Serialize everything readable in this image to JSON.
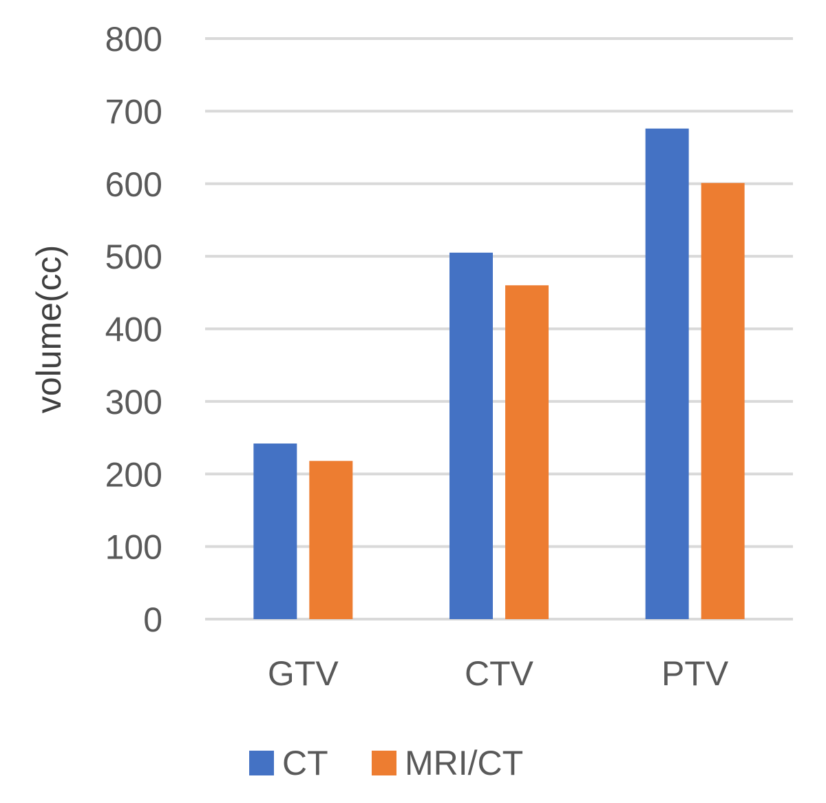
{
  "chart_data": {
    "type": "bar",
    "categories": [
      "GTV",
      "CTV",
      "PTV"
    ],
    "series": [
      {
        "name": "CT",
        "values": [
          242,
          505,
          676
        ],
        "color": "#4472C4"
      },
      {
        "name": "MRI/CT",
        "values": [
          218,
          460,
          601
        ],
        "color": "#ED7D31"
      }
    ],
    "ylabel": "volume(cc)",
    "xlabel": "",
    "ylim": [
      0,
      800
    ],
    "yticks": [
      0,
      100,
      200,
      300,
      400,
      500,
      600,
      700,
      800
    ],
    "grid": true,
    "gridColor": "#D9D9D9",
    "legend": "bottom"
  }
}
